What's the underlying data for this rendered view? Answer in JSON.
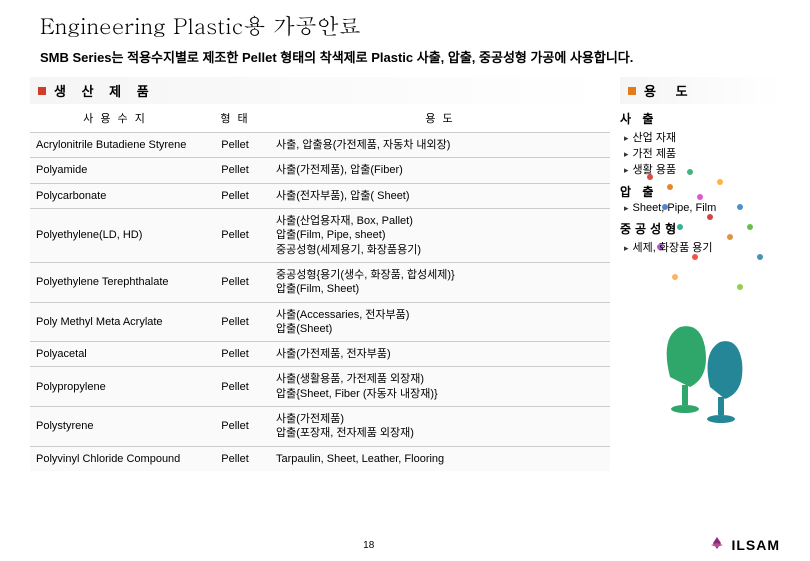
{
  "title": "Engineering Plastic용 가공안료",
  "subtitle": "SMB Series는 적용수지별로 제조한 Pellet 형태의 착색제로 Plastic 사출, 압출, 중공성형 가공에 사용합니다.",
  "sectionProducts": "생  산  제  품",
  "sectionUsage": "용   도",
  "table": {
    "headers": {
      "resin": "사  용  수  지",
      "form": "형  태",
      "usage": "용                  도"
    },
    "rows": [
      {
        "resin": "Acrylonitrile Butadiene Styrene",
        "form": "Pellet",
        "usage": "사출, 압출용(가전제품, 자동차 내외장)"
      },
      {
        "resin": "Polyamide",
        "form": "Pellet",
        "usage": "사출(가전제품), 압출(Fiber)"
      },
      {
        "resin": "Polycarbonate",
        "form": "Pellet",
        "usage": "사출(전자부품), 압출( Sheet)"
      },
      {
        "resin": "Polyethylene(LD, HD)",
        "form": "Pellet",
        "usage": "사출(산업용자재, Box, Pallet)\n압출(Film, Pipe, sheet)\n중공성형(세제용기, 화장품용기)"
      },
      {
        "resin": "Polyethylene Terephthalate",
        "form": "Pellet",
        "usage": "중공성형{용기(생수, 화장품, 합성세제)}\n압출(Film, Sheet)"
      },
      {
        "resin": "Poly Methyl Meta Acrylate",
        "form": "Pellet",
        "usage": "사출(Accessaries, 전자부품)\n압출(Sheet)"
      },
      {
        "resin": "Polyacetal",
        "form": "Pellet",
        "usage": "사출(가전제품, 전자부품)"
      },
      {
        "resin": "Polypropylene",
        "form": "Pellet",
        "usage": "사출(생활용품, 가전제품 외장재)\n압출{Sheet, Fiber (자동자 내장재)}"
      },
      {
        "resin": "Polystyrene",
        "form": "Pellet",
        "usage": "사출(가전제품)\n압출(포장재, 전자제품 외장재)"
      },
      {
        "resin": "Polyvinyl Chloride Compound",
        "form": "Pellet",
        "usage": "Tarpaulin, Sheet, Leather, Flooring"
      }
    ]
  },
  "usageCategories": [
    {
      "title": "사   출",
      "items": [
        "산업 자재",
        "가전 제품",
        "생활 용품"
      ]
    },
    {
      "title": "압 출",
      "items": [
        "Sheet, Pipe, Film"
      ]
    },
    {
      "title": "중공성형",
      "items": [
        "세제, 화장품 용기"
      ]
    }
  ],
  "pageNumber": "18",
  "logoText": "ILSAM",
  "colors": {
    "red": "#d43c2a",
    "orange": "#e57a1a",
    "logoPurple": "#8b2a7a"
  }
}
